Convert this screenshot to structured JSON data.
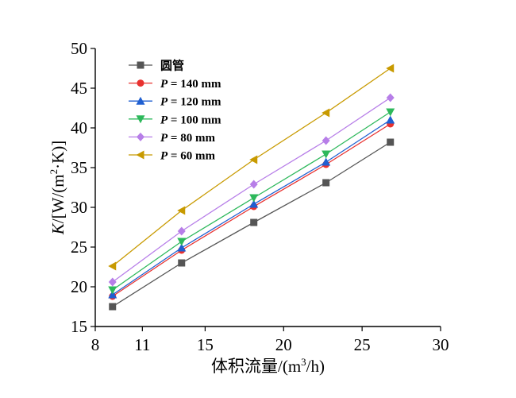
{
  "chart_data": {
    "type": "line",
    "title": "",
    "xlabel": "体积流量/(m³/h)",
    "ylabel": "K/[W/(m²·K)]",
    "xlim": [
      8,
      30
    ],
    "ylim": [
      15,
      50
    ],
    "xticks": [
      8,
      11,
      15,
      20,
      25,
      30
    ],
    "yticks": [
      15,
      20,
      25,
      30,
      35,
      40,
      45,
      50
    ],
    "grid": false,
    "legend_position": "top-left",
    "x": [
      9.1,
      13.5,
      18.1,
      22.7,
      26.8
    ],
    "series": [
      {
        "name": "圆管",
        "marker": "square",
        "color": "#555555",
        "values": [
          17.5,
          23.0,
          28.1,
          33.1,
          38.2
        ]
      },
      {
        "name": "P = 140 mm",
        "marker": "circle",
        "color": "#e8312f",
        "values": [
          18.8,
          24.6,
          30.1,
          35.4,
          40.5
        ]
      },
      {
        "name": "P = 120 mm",
        "marker": "triangle-up",
        "color": "#1f5fd1",
        "values": [
          19.0,
          24.9,
          30.4,
          35.7,
          41.0
        ]
      },
      {
        "name": "P = 100 mm",
        "marker": "triangle-down",
        "color": "#2db85b",
        "values": [
          19.6,
          25.7,
          31.2,
          36.7,
          42.0
        ]
      },
      {
        "name": "P = 80 mm",
        "marker": "diamond",
        "color": "#b77ee8",
        "values": [
          20.6,
          27.0,
          32.9,
          38.4,
          43.8
        ]
      },
      {
        "name": "P = 60 mm",
        "marker": "triangle-left",
        "color": "#c89a00",
        "values": [
          22.6,
          29.6,
          36.0,
          41.9,
          47.5
        ]
      }
    ]
  }
}
